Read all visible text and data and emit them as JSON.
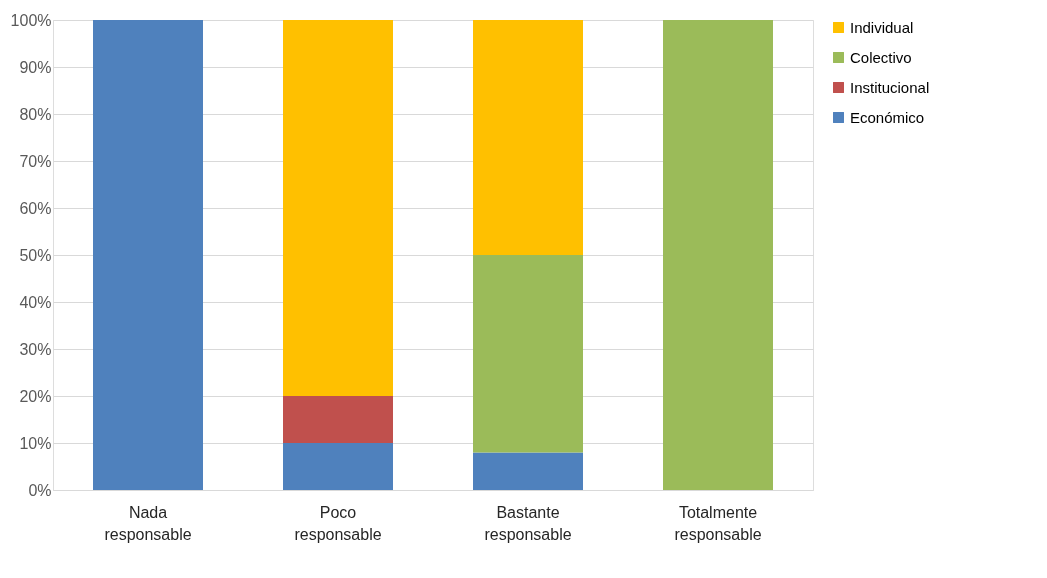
{
  "chart_data": {
    "type": "bar",
    "stacked": true,
    "categories": [
      "Nada\nresponsable",
      "Poco\nresponsable",
      "Bastante\nresponsable",
      "Totalmente\nresponsable"
    ],
    "series": [
      {
        "name": "Económico",
        "color": "#4f81bd",
        "values": [
          100,
          10,
          8,
          null
        ]
      },
      {
        "name": "Institucional",
        "color": "#c0504d",
        "values": [
          null,
          10,
          null,
          null
        ]
      },
      {
        "name": "Colectivo",
        "color": "#9bbb59",
        "values": [
          null,
          null,
          42,
          100
        ]
      },
      {
        "name": "Individual",
        "color": "#ffc000",
        "values": [
          null,
          80,
          50,
          null
        ]
      }
    ],
    "ylim": [
      0,
      100
    ],
    "yticks": [
      {
        "value": 0,
        "label": "0%"
      },
      {
        "value": 10,
        "label": "10%"
      },
      {
        "value": 20,
        "label": "20%"
      },
      {
        "value": 30,
        "label": "30%"
      },
      {
        "value": 40,
        "label": "40%"
      },
      {
        "value": 50,
        "label": "50%"
      },
      {
        "value": 60,
        "label": "60%"
      },
      {
        "value": 70,
        "label": "70%"
      },
      {
        "value": 80,
        "label": "80%"
      },
      {
        "value": 90,
        "label": "90%"
      },
      {
        "value": 100,
        "label": "100%"
      }
    ],
    "grid": "y",
    "legend": "right"
  }
}
